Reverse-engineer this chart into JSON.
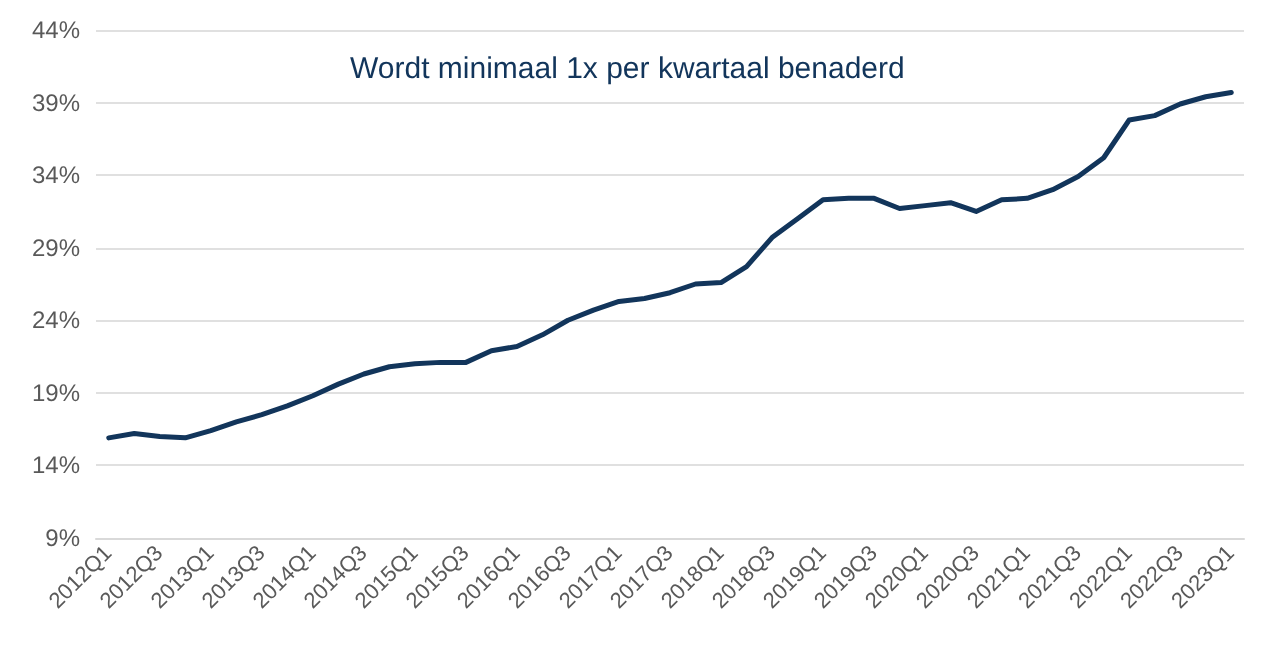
{
  "chart_data": {
    "type": "line",
    "title": "Wordt minimaal 1x per kwartaal benaderd",
    "categories": [
      "2012Q1",
      null,
      "2012Q3",
      null,
      "2013Q1",
      null,
      "2013Q3",
      null,
      "2014Q1",
      null,
      "2014Q3",
      null,
      "2015Q1",
      null,
      "2015Q3",
      null,
      "2016Q1",
      null,
      "2016Q3",
      null,
      "2017Q1",
      null,
      "2017Q3",
      null,
      "2018Q1",
      null,
      "2018Q3",
      null,
      "2019Q1",
      null,
      "2019Q3",
      null,
      "2020Q1",
      null,
      "2020Q3",
      null,
      "2021Q1",
      null,
      "2021Q3",
      null,
      "2022Q1",
      null,
      "2022Q3",
      null,
      "2023Q1"
    ],
    "series": [
      {
        "color": "#12355b",
        "values": [
          15.9,
          16.2,
          16.0,
          15.9,
          16.4,
          17.0,
          17.5,
          18.1,
          18.8,
          19.6,
          20.3,
          20.8,
          21.0,
          21.1,
          21.1,
          21.9,
          22.2,
          23.0,
          24.0,
          24.7,
          25.3,
          25.5,
          25.9,
          26.5,
          26.6,
          27.7,
          29.7,
          31.0,
          32.3,
          32.4,
          32.4,
          31.7,
          31.9,
          32.1,
          31.5,
          32.3,
          32.4,
          33.0,
          33.9,
          35.2,
          37.8,
          38.1,
          38.9,
          39.4,
          39.7
        ]
      }
    ],
    "ylim": [
      9,
      44
    ],
    "yticks": [
      {
        "value": 9,
        "label": "9%"
      },
      {
        "value": 14,
        "label": "14%"
      },
      {
        "value": 19,
        "label": "19%"
      },
      {
        "value": 24,
        "label": "24%"
      },
      {
        "value": 29,
        "label": "29%"
      },
      {
        "value": 34,
        "label": "34%"
      },
      {
        "value": 39,
        "label": "39%"
      },
      {
        "value": 44,
        "label": "44%"
      }
    ],
    "grid": "y",
    "marker": "none",
    "line_style": "solid"
  }
}
